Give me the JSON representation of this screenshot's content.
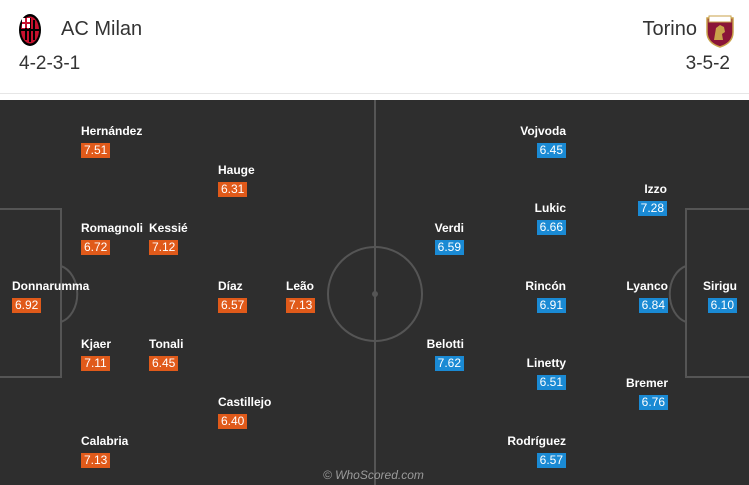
{
  "home": {
    "name": "AC Milan",
    "formation": "4-2-3-1",
    "crest_icon": "ac-milan-crest-icon",
    "rating_color": "#e05a1a",
    "players": [
      {
        "name": "Hernández",
        "rating": "7.51"
      },
      {
        "name": "Hauge",
        "rating": "6.31"
      },
      {
        "name": "Romagnoli",
        "rating": "6.72"
      },
      {
        "name": "Kessié",
        "rating": "7.12"
      },
      {
        "name": "Donnarumma",
        "rating": "6.92"
      },
      {
        "name": "Díaz",
        "rating": "6.57"
      },
      {
        "name": "Leão",
        "rating": "7.13"
      },
      {
        "name": "Kjaer",
        "rating": "7.11"
      },
      {
        "name": "Tonali",
        "rating": "6.45"
      },
      {
        "name": "Castillejo",
        "rating": "6.40"
      },
      {
        "name": "Calabria",
        "rating": "7.13"
      }
    ]
  },
  "away": {
    "name": "Torino",
    "formation": "3-5-2",
    "crest_icon": "torino-crest-icon",
    "rating_color": "#1a8ad4",
    "players": [
      {
        "name": "Vojvoda",
        "rating": "6.45"
      },
      {
        "name": "Izzo",
        "rating": "7.28"
      },
      {
        "name": "Verdi",
        "rating": "6.59"
      },
      {
        "name": "Lukic",
        "rating": "6.66"
      },
      {
        "name": "Rincón",
        "rating": "6.91"
      },
      {
        "name": "Lyanco",
        "rating": "6.84"
      },
      {
        "name": "Sirigu",
        "rating": "6.10"
      },
      {
        "name": "Belotti",
        "rating": "7.62"
      },
      {
        "name": "Linetty",
        "rating": "6.51"
      },
      {
        "name": "Bremer",
        "rating": "6.76"
      },
      {
        "name": "Rodríguez",
        "rating": "6.57"
      }
    ]
  },
  "watermark": "© WhoScored.com"
}
